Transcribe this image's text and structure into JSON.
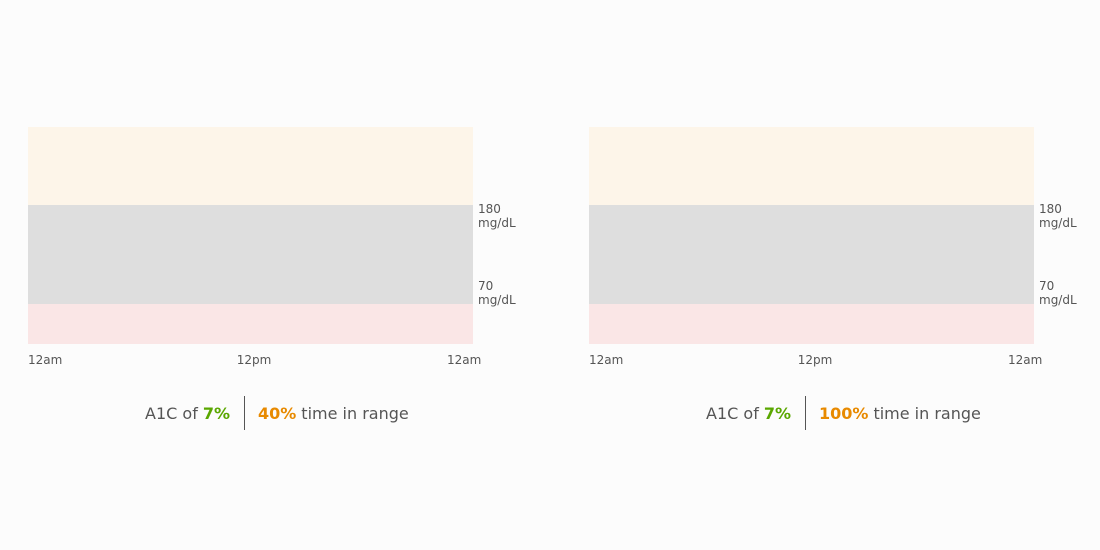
{
  "panels": [
    {
      "upper_label": {
        "value": "180",
        "unit": "mg/dL"
      },
      "lower_label": {
        "value": "70",
        "unit": "mg/dL"
      },
      "x_labels": [
        "12am",
        "12pm",
        "12am"
      ],
      "summary": {
        "a1c_prefix": "A1C of",
        "a1c_value": "7%",
        "tir_value": "40%",
        "tir_suffix": "time in range"
      }
    },
    {
      "upper_label": {
        "value": "180",
        "unit": "mg/dL"
      },
      "lower_label": {
        "value": "70",
        "unit": "mg/dL"
      },
      "x_labels": [
        "12am",
        "12pm",
        "12am"
      ],
      "summary": {
        "a1c_prefix": "A1C of",
        "a1c_value": "7%",
        "tir_value": "100%",
        "tir_suffix": "time in range"
      }
    }
  ]
}
